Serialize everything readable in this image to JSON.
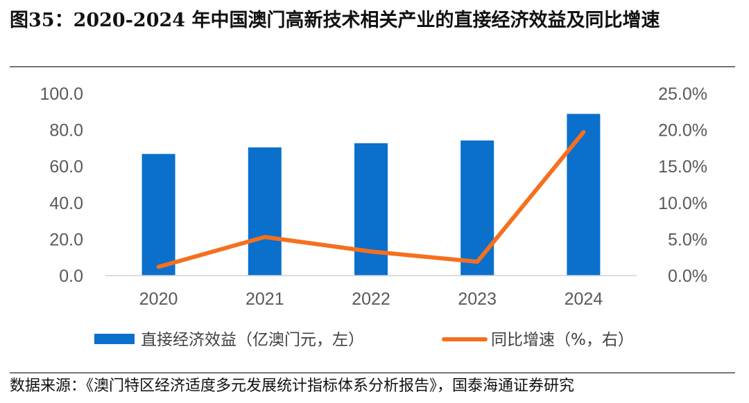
{
  "title": "图35：2020-2024 年中国澳门高新技术相关产业的直接经济效益及同比增速",
  "source": "数据来源：《澳门特区经济适度多元发展统计指标体系分析报告》，国泰海通证券研究",
  "colors": {
    "bar": "#0a70cc",
    "line": "#f5701e",
    "axis": "#d0d0d0",
    "tick": "#595959"
  },
  "chart_data": {
    "type": "bar+line",
    "categories": [
      "2020",
      "2021",
      "2022",
      "2023",
      "2024"
    ],
    "series": [
      {
        "name": "直接经济效益（亿澳门元，左）",
        "type": "bar",
        "axis": "left",
        "values": [
          66.8,
          70.4,
          72.7,
          74.2,
          88.8
        ]
      },
      {
        "name": "同比增速（%，右）",
        "type": "line",
        "axis": "right",
        "values": [
          1.2,
          5.3,
          3.3,
          1.9,
          19.7
        ]
      }
    ],
    "y_left": {
      "min": 0,
      "max": 100,
      "ticks": [
        "0.0",
        "20.0",
        "40.0",
        "60.0",
        "80.0",
        "100.0"
      ]
    },
    "y_right": {
      "min": 0,
      "max": 25,
      "ticks": [
        "0.0%",
        "5.0%",
        "10.0%",
        "15.0%",
        "20.0%",
        "25.0%"
      ]
    },
    "legend": "bottom",
    "grid": false
  }
}
